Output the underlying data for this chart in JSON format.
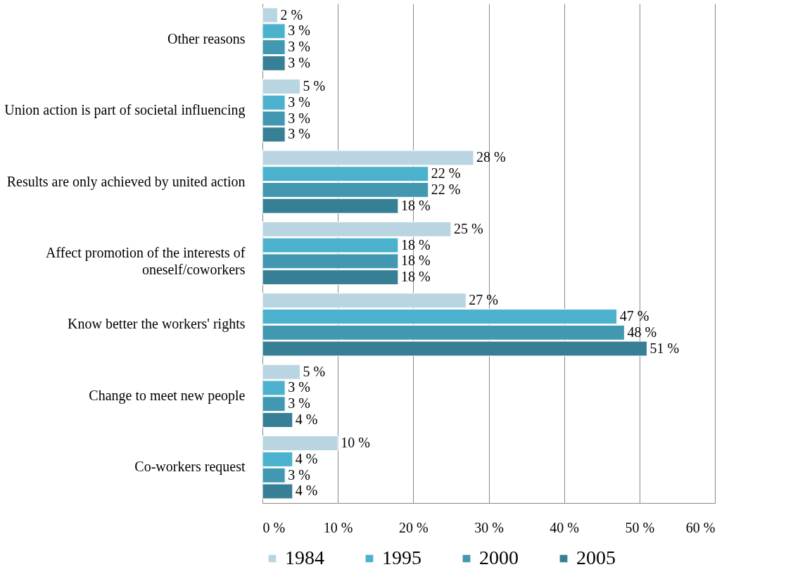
{
  "chart_data": {
    "type": "bar",
    "orientation": "horizontal",
    "categories": [
      "Other reasons",
      "Union action is part of societal influencing",
      "Results are only achieved by united action",
      "Affect promotion of the interests of oneself/coworkers",
      "Know better the workers' rights",
      "Change to meet new people",
      "Co-workers request"
    ],
    "series": [
      {
        "name": "1984",
        "color": "#b9d5e1",
        "values": [
          2,
          5,
          28,
          25,
          27,
          5,
          10
        ],
        "value_labels": [
          "2 %",
          "5 %",
          "28 %",
          "25 %",
          "27 %",
          "5 %",
          "10 %"
        ]
      },
      {
        "name": "1995",
        "color": "#4cb1cd",
        "values": [
          3,
          3,
          22,
          18,
          47,
          3,
          4
        ],
        "value_labels": [
          "3 %",
          "3 %",
          "22 %",
          "18 %",
          "47 %",
          "3 %",
          "4 %"
        ]
      },
      {
        "name": "2000",
        "color": "#4198b0",
        "values": [
          3,
          3,
          22,
          18,
          48,
          3,
          3
        ],
        "value_labels": [
          "3 %",
          "3 %",
          "22 %",
          "18 %",
          "48 %",
          "3 %",
          "3 %"
        ]
      },
      {
        "name": "2005",
        "color": "#377f95",
        "values": [
          3,
          3,
          18,
          18,
          51,
          4,
          4
        ],
        "value_labels": [
          "3 %",
          "3 %",
          "18 %",
          "18 %",
          "51 %",
          "4 %",
          "4 %"
        ]
      }
    ],
    "xlim": [
      0,
      60
    ],
    "xticks": [
      {
        "value": 0,
        "label": "0 %"
      },
      {
        "value": 10,
        "label": "10 %"
      },
      {
        "value": 20,
        "label": "20 %"
      },
      {
        "value": 30,
        "label": "30 %"
      },
      {
        "value": 40,
        "label": "40 %"
      },
      {
        "value": 50,
        "label": "50 %"
      },
      {
        "value": 60,
        "label": "60 %"
      }
    ],
    "grid": "x",
    "legend": "bottom"
  }
}
